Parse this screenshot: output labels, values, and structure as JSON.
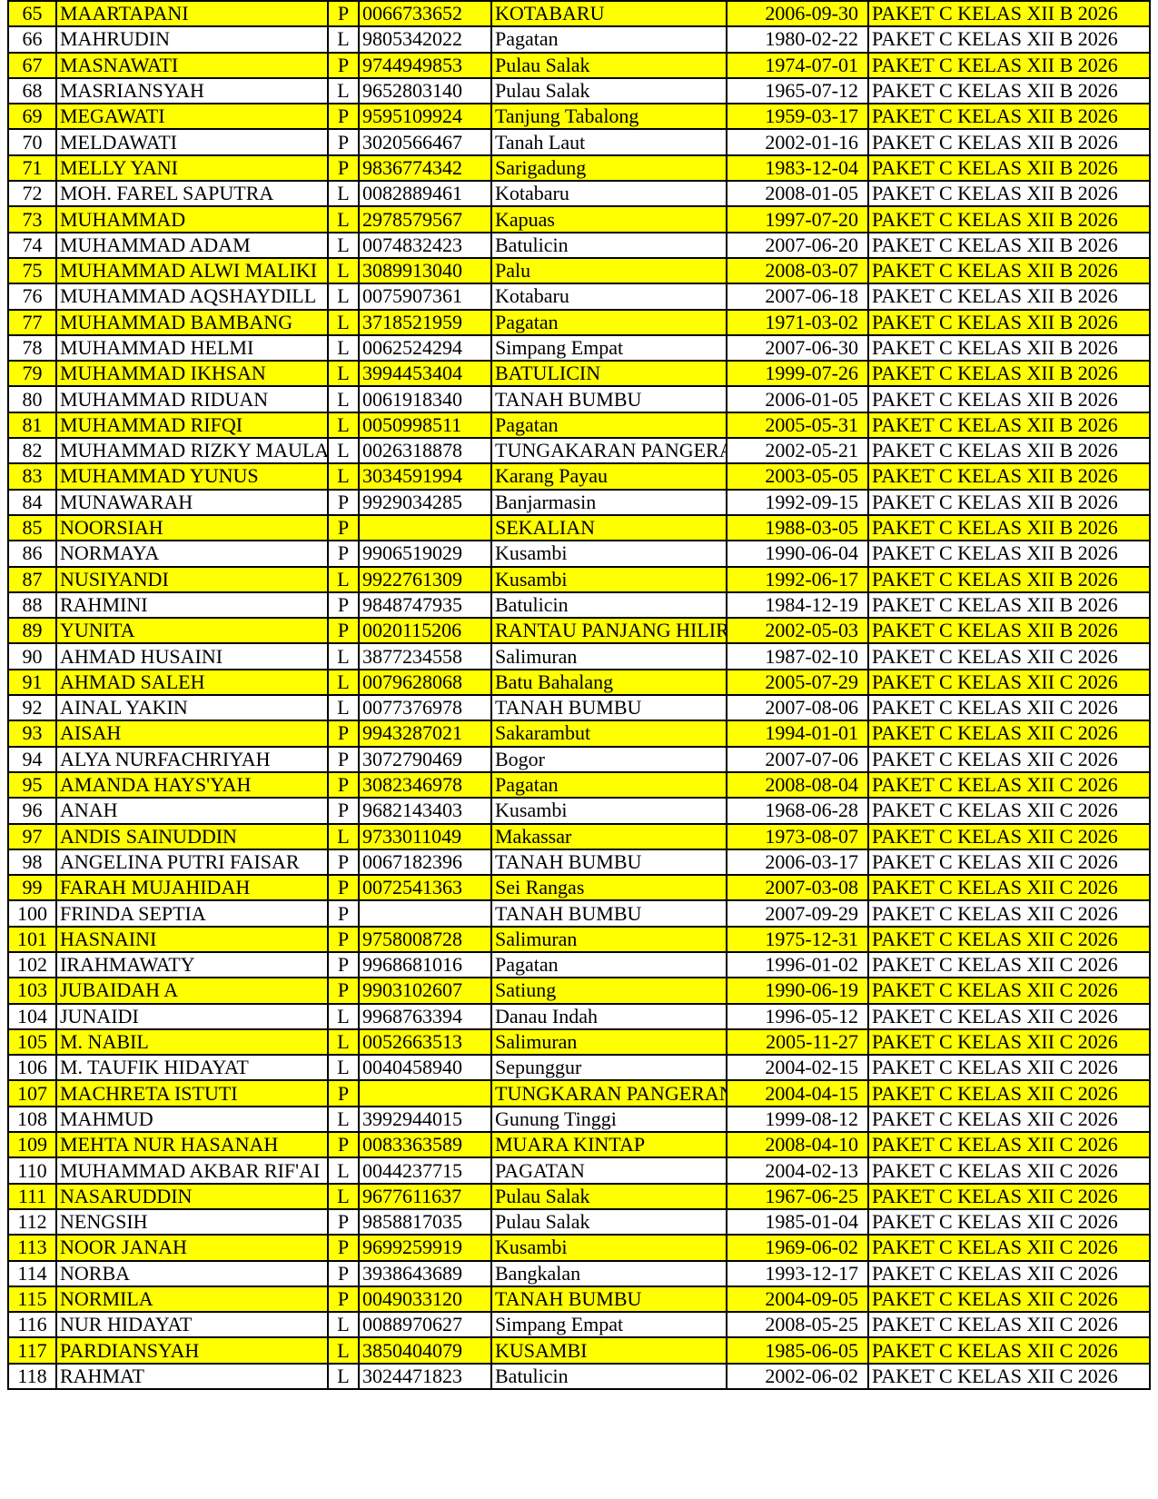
{
  "highlight_color": "#ffff00",
  "rows": [
    [
      "65",
      "MAARTAPANI",
      "P",
      "0066733652",
      "KOTABARU",
      "2006-09-30",
      "PAKET C KELAS XII B 2026"
    ],
    [
      "66",
      "MAHRUDIN",
      "L",
      "9805342022",
      "Pagatan",
      "1980-02-22",
      "PAKET C KELAS XII B 2026"
    ],
    [
      "67",
      "MASNAWATI",
      "P",
      "9744949853",
      "Pulau Salak",
      "1974-07-01",
      "PAKET C KELAS XII B 2026"
    ],
    [
      "68",
      "MASRIANSYAH",
      "L",
      "9652803140",
      "Pulau Salak",
      "1965-07-12",
      "PAKET C KELAS XII B 2026"
    ],
    [
      "69",
      "MEGAWATI",
      "P",
      "9595109924",
      "Tanjung Tabalong",
      "1959-03-17",
      "PAKET C KELAS XII B 2026"
    ],
    [
      "70",
      "MELDAWATI",
      "P",
      "3020566467",
      "Tanah Laut",
      "2002-01-16",
      "PAKET C KELAS XII B 2026"
    ],
    [
      "71",
      "MELLY YANI",
      "P",
      "9836774342",
      "Sarigadung",
      "1983-12-04",
      "PAKET C KELAS XII B 2026"
    ],
    [
      "72",
      "MOH. FAREL SAPUTRA",
      "L",
      "0082889461",
      "Kotabaru",
      "2008-01-05",
      "PAKET C KELAS XII B 2026"
    ],
    [
      "73",
      "MUHAMMAD",
      "L",
      "2978579567",
      "Kapuas",
      "1997-07-20",
      "PAKET C KELAS XII B 2026"
    ],
    [
      "74",
      "MUHAMMAD ADAM",
      "L",
      "0074832423",
      "Batulicin",
      "2007-06-20",
      "PAKET C KELAS XII B 2026"
    ],
    [
      "75",
      "MUHAMMAD ALWI MALIKI",
      "L",
      "3089913040",
      "Palu",
      "2008-03-07",
      "PAKET C KELAS XII B 2026"
    ],
    [
      "76",
      "MUHAMMAD AQSHAYDILL",
      "L",
      "0075907361",
      "Kotabaru",
      "2007-06-18",
      "PAKET C KELAS XII B 2026"
    ],
    [
      "77",
      "MUHAMMAD BAMBANG",
      "L",
      "3718521959",
      "Pagatan",
      "1971-03-02",
      "PAKET C KELAS XII B 2026"
    ],
    [
      "78",
      "MUHAMMAD HELMI",
      "L",
      "0062524294",
      "Simpang Empat",
      "2007-06-30",
      "PAKET C KELAS XII B 2026"
    ],
    [
      "79",
      "MUHAMMAD IKHSAN",
      "L",
      "3994453404",
      "BATULICIN",
      "1999-07-26",
      "PAKET C KELAS XII B 2026"
    ],
    [
      "80",
      "MUHAMMAD RIDUAN",
      "L",
      "0061918340",
      "TANAH BUMBU",
      "2006-01-05",
      "PAKET C KELAS XII B 2026"
    ],
    [
      "81",
      "MUHAMMAD RIFQI",
      "L",
      "0050998511",
      "Pagatan",
      "2005-05-31",
      "PAKET C KELAS XII B 2026"
    ],
    [
      "82",
      "MUHAMMAD RIZKY MAULA",
      "L",
      "0026318878",
      "TUNGAKARAN PANGERAN",
      "2002-05-21",
      "PAKET C KELAS XII B 2026"
    ],
    [
      "83",
      "MUHAMMAD YUNUS",
      "L",
      "3034591994",
      "Karang Payau",
      "2003-05-05",
      "PAKET C KELAS XII B 2026"
    ],
    [
      "84",
      "MUNAWARAH",
      "P",
      "9929034285",
      "Banjarmasin",
      "1992-09-15",
      "PAKET C KELAS XII B 2026"
    ],
    [
      "85",
      "NOORSIAH",
      "P",
      "",
      "SEKALIAN",
      "1988-03-05",
      "PAKET C KELAS XII B 2026"
    ],
    [
      "86",
      "NORMAYA",
      "P",
      "9906519029",
      "Kusambi",
      "1990-06-04",
      "PAKET C KELAS XII B 2026"
    ],
    [
      "87",
      "NUSIYANDI",
      "L",
      "9922761309",
      "Kusambi",
      "1992-06-17",
      "PAKET C KELAS XII B 2026"
    ],
    [
      "88",
      "RAHMINI",
      "P",
      "9848747935",
      "Batulicin",
      "1984-12-19",
      "PAKET C KELAS XII B 2026"
    ],
    [
      "89",
      "YUNITA",
      "P",
      "0020115206",
      "RANTAU PANJANG HILIR",
      "2002-05-03",
      "PAKET C KELAS XII B 2026"
    ],
    [
      "90",
      "AHMAD HUSAINI",
      "L",
      "3877234558",
      "Salimuran",
      "1987-02-10",
      "PAKET C KELAS XII C 2026"
    ],
    [
      "91",
      "AHMAD SALEH",
      "L",
      "0079628068",
      "Batu Bahalang",
      "2005-07-29",
      "PAKET C KELAS XII C 2026"
    ],
    [
      "92",
      "AINAL YAKIN",
      "L",
      "0077376978",
      "TANAH BUMBU",
      "2007-08-06",
      "PAKET C KELAS XII C 2026"
    ],
    [
      "93",
      "AISAH",
      "P",
      "9943287021",
      "Sakarambut",
      "1994-01-01",
      "PAKET C KELAS XII C 2026"
    ],
    [
      "94",
      "ALYA NURFACHRIYAH",
      "P",
      "3072790469",
      "Bogor",
      "2007-07-06",
      "PAKET C KELAS XII C 2026"
    ],
    [
      "95",
      "AMANDA HAYS'YAH",
      "P",
      "3082346978",
      "Pagatan",
      "2008-08-04",
      "PAKET C KELAS XII C 2026"
    ],
    [
      "96",
      "ANAH",
      "P",
      "9682143403",
      "Kusambi",
      "1968-06-28",
      "PAKET C KELAS XII C 2026"
    ],
    [
      "97",
      "ANDIS SAINUDDIN",
      "L",
      "9733011049",
      "Makassar",
      "1973-08-07",
      "PAKET C KELAS XII C 2026"
    ],
    [
      "98",
      "ANGELINA PUTRI FAISAR",
      "P",
      "0067182396",
      "TANAH BUMBU",
      "2006-03-17",
      "PAKET C KELAS XII C 2026"
    ],
    [
      "99",
      "FARAH MUJAHIDAH",
      "P",
      "0072541363",
      "Sei Rangas",
      "2007-03-08",
      "PAKET C KELAS XII C 2026"
    ],
    [
      "100",
      "FRINDA SEPTIA",
      "P",
      "",
      "TANAH BUMBU",
      "2007-09-29",
      "PAKET C KELAS XII C 2026"
    ],
    [
      "101",
      "HASNAINI",
      "P",
      "9758008728",
      "Salimuran",
      "1975-12-31",
      "PAKET C KELAS XII C 2026"
    ],
    [
      "102",
      "IRAHMAWATY",
      "P",
      "9968681016",
      "Pagatan",
      "1996-01-02",
      "PAKET C KELAS XII C 2026"
    ],
    [
      "103",
      "JUBAIDAH A",
      "P",
      "9903102607",
      "Satiung",
      "1990-06-19",
      "PAKET C KELAS XII C 2026"
    ],
    [
      "104",
      "JUNAIDI",
      "L",
      "9968763394",
      "Danau Indah",
      "1996-05-12",
      "PAKET C KELAS XII C 2026"
    ],
    [
      "105",
      "M. NABIL",
      "L",
      "0052663513",
      "Salimuran",
      "2005-11-27",
      "PAKET C KELAS XII C 2026"
    ],
    [
      "106",
      "M. TAUFIK HIDAYAT",
      "L",
      "0040458940",
      "Sepunggur",
      "2004-02-15",
      "PAKET C KELAS XII C 2026"
    ],
    [
      "107",
      "MACHRETA ISTUTI",
      "P",
      "",
      "TUNGKARAN PANGERAN",
      "2004-04-15",
      "PAKET C KELAS XII C 2026"
    ],
    [
      "108",
      "MAHMUD",
      "L",
      "3992944015",
      "Gunung Tinggi",
      "1999-08-12",
      "PAKET C KELAS XII C 2026"
    ],
    [
      "109",
      "MEHTA NUR HASANAH",
      "P",
      "0083363589",
      "MUARA KINTAP",
      "2008-04-10",
      "PAKET C KELAS XII C 2026"
    ],
    [
      "110",
      "MUHAMMAD AKBAR RIF'AI",
      "L",
      "0044237715",
      "PAGATAN",
      "2004-02-13",
      "PAKET C KELAS XII C 2026"
    ],
    [
      "111",
      "NASARUDDIN",
      "L",
      "9677611637",
      "Pulau Salak",
      "1967-06-25",
      "PAKET C KELAS XII C 2026"
    ],
    [
      "112",
      "NENGSIH",
      "P",
      "9858817035",
      "Pulau Salak",
      "1985-01-04",
      "PAKET C KELAS XII C 2026"
    ],
    [
      "113",
      "NOOR JANAH",
      "P",
      "9699259919",
      "Kusambi",
      "1969-06-02",
      "PAKET C KELAS XII C 2026"
    ],
    [
      "114",
      "NORBA",
      "P",
      "3938643689",
      "Bangkalan",
      "1993-12-17",
      "PAKET C KELAS XII C 2026"
    ],
    [
      "115",
      "NORMILA",
      "P",
      "0049033120",
      "TANAH BUMBU",
      "2004-09-05",
      "PAKET C KELAS XII C 2026"
    ],
    [
      "116",
      "NUR HIDAYAT",
      "L",
      "0088970627",
      "Simpang Empat",
      "2008-05-25",
      "PAKET C KELAS XII C 2026"
    ],
    [
      "117",
      "PARDIANSYAH",
      "L",
      "3850404079",
      "KUSAMBI",
      "1985-06-05",
      "PAKET C KELAS XII C 2026"
    ],
    [
      "118",
      "RAHMAT",
      "L",
      "3024471823",
      "Batulicin",
      "2002-06-02",
      "PAKET C KELAS XII C 2026"
    ]
  ]
}
